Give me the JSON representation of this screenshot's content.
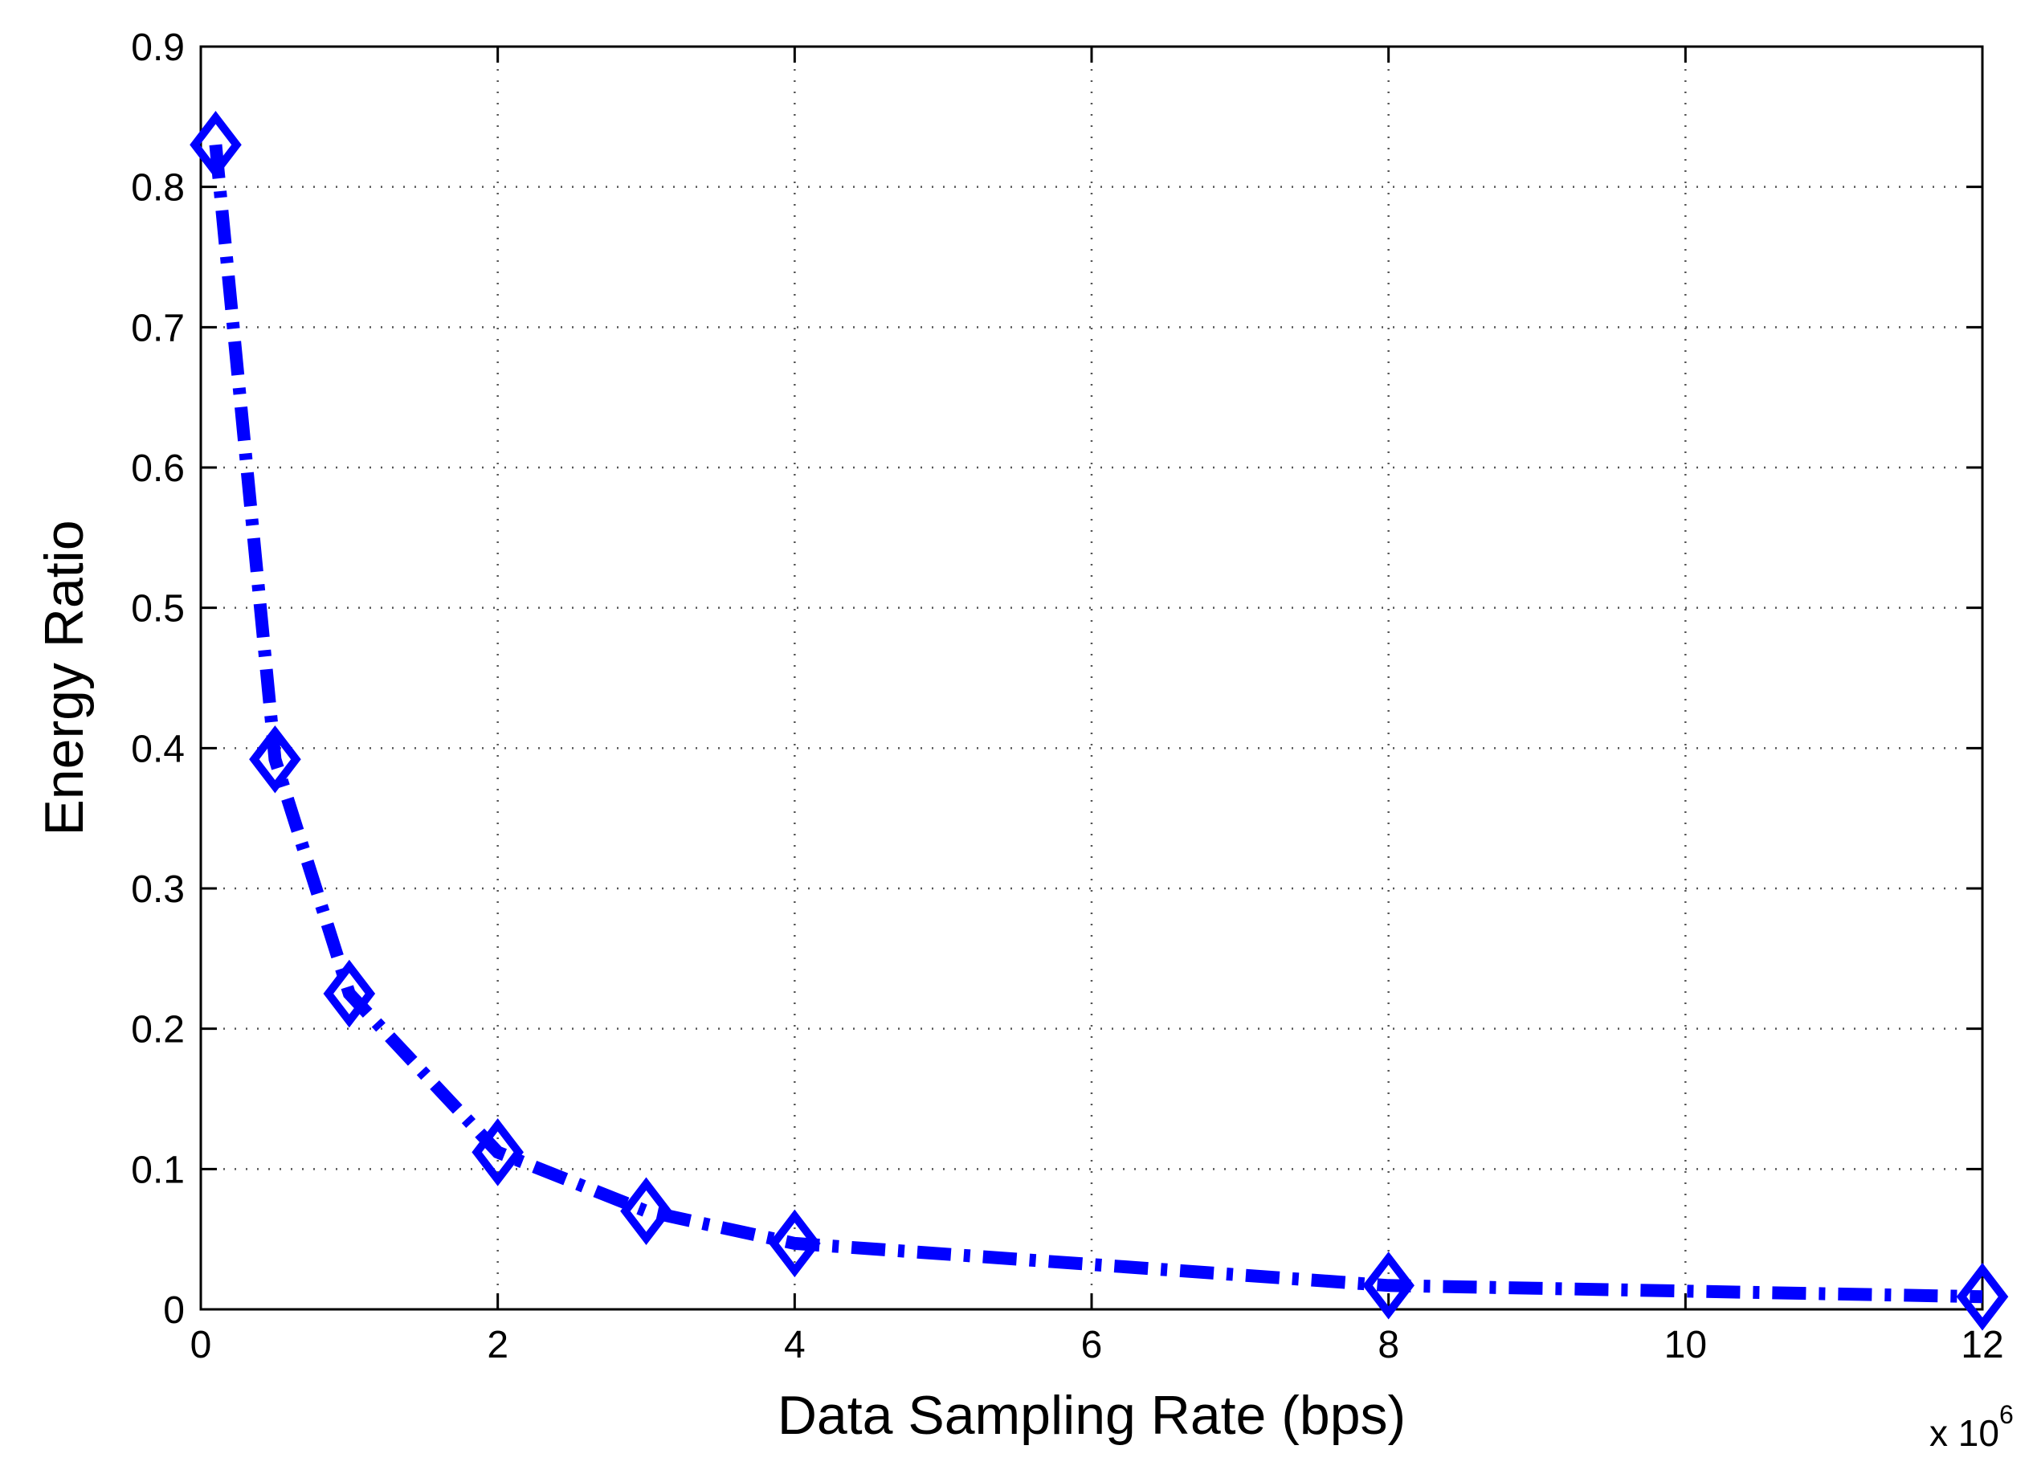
{
  "chart_data": {
    "type": "line",
    "title": "",
    "xlabel": "Data Sampling Rate (bps)",
    "ylabel": "Energy Ratio",
    "x_multiplier_label": "x 10",
    "x_multiplier_exponent": "6",
    "xlim": [
      0,
      12
    ],
    "ylim": [
      0,
      0.9
    ],
    "xticks": [
      0,
      2,
      4,
      6,
      8,
      10,
      12
    ],
    "yticks": [
      0,
      0.1,
      0.2,
      0.3,
      0.4,
      0.5,
      0.6,
      0.7,
      0.8,
      0.9
    ],
    "xtick_labels": [
      "0",
      "2",
      "4",
      "6",
      "8",
      "10",
      "12"
    ],
    "ytick_labels": [
      "0",
      "0.1",
      "0.2",
      "0.3",
      "0.4",
      "0.5",
      "0.6",
      "0.7",
      "0.8",
      "0.9"
    ],
    "grid": true,
    "series": [
      {
        "name": "Energy Ratio",
        "color": "#0000ff",
        "line_style": "dash-dot",
        "marker": "diamond",
        "x": [
          0.1,
          0.5,
          1,
          2,
          3,
          4,
          8,
          12
        ],
        "y": [
          0.83,
          0.392,
          0.225,
          0.112,
          0.07,
          0.047,
          0.017,
          0.009
        ]
      }
    ]
  }
}
